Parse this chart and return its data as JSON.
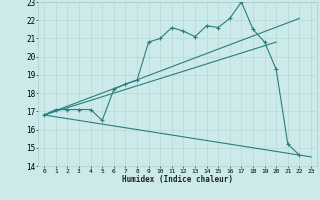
{
  "xlabel": "Humidex (Indice chaleur)",
  "xlim": [
    -0.5,
    23.5
  ],
  "ylim": [
    14,
    23
  ],
  "yticks": [
    14,
    15,
    16,
    17,
    18,
    19,
    20,
    21,
    22,
    23
  ],
  "xticks": [
    0,
    1,
    2,
    3,
    4,
    5,
    6,
    7,
    8,
    9,
    10,
    11,
    12,
    13,
    14,
    15,
    16,
    17,
    18,
    19,
    20,
    21,
    22,
    23
  ],
  "bg_color": "#cceaea",
  "line_color": "#2a7d7d",
  "grid_color": "#b8d8d8",
  "line1_x": [
    0,
    1,
    2,
    3,
    4,
    5,
    6,
    7,
    8,
    9,
    10,
    11,
    12,
    13,
    14,
    15,
    16,
    17,
    18,
    19,
    20,
    21,
    22
  ],
  "line1_y": [
    16.8,
    17.1,
    17.1,
    17.1,
    17.1,
    16.5,
    18.2,
    18.5,
    18.7,
    20.8,
    21.0,
    21.6,
    21.4,
    21.1,
    21.7,
    21.6,
    22.1,
    23.0,
    21.5,
    20.8,
    19.3,
    15.2,
    14.6
  ],
  "line2_x": [
    0,
    22
  ],
  "line2_y": [
    16.8,
    22.1
  ],
  "line3_x": [
    0,
    20
  ],
  "line3_y": [
    16.8,
    20.8
  ],
  "line4_x": [
    0,
    23
  ],
  "line4_y": [
    16.8,
    14.5
  ]
}
